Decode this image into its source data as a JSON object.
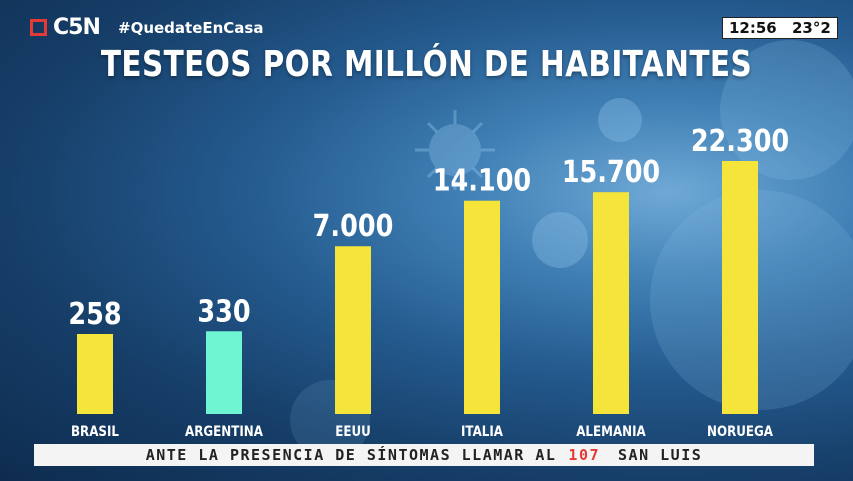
{
  "channel": {
    "logo": "C5N",
    "hashtag": "#QuedateEnCasa",
    "brand_color": "#e53935"
  },
  "clock": {
    "time": "12:56",
    "temperature": "23°2"
  },
  "ticker": {
    "text": "ANTE LA PRESENCIA DE SÍNTOMAS LLAMAR AL",
    "number": "107",
    "place": "SAN LUIS"
  },
  "chart_data": {
    "type": "bar",
    "title": "TESTEOS POR MILLÓN DE HABITANTES",
    "categories": [
      "BRASIL",
      "ARGENTINA",
      "EEUU",
      "ITALIA",
      "ALEMANIA",
      "NORUEGA"
    ],
    "values": [
      258,
      330,
      7000,
      14100,
      15700,
      22300
    ],
    "value_labels": [
      "258",
      "330",
      "7.000",
      "14.100",
      "15.700",
      "22.300"
    ],
    "colors": [
      "#f5e43a",
      "#6ff5d2",
      "#f5e43a",
      "#f5e43a",
      "#f5e43a",
      "#f5e43a"
    ],
    "highlight": "ARGENTINA",
    "grid": false,
    "legend": "none"
  }
}
